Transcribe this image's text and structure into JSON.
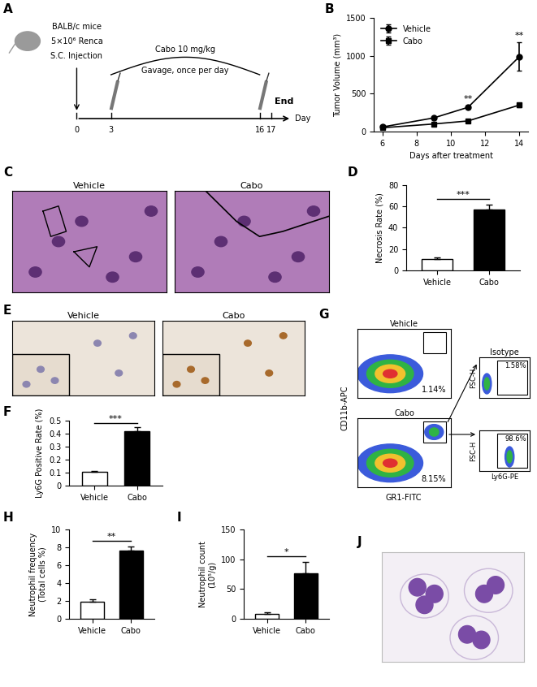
{
  "schematic": {
    "panel": "A",
    "lines": [
      "BALB/c mice",
      "5×10⁶ Renca",
      "S.C. Injection"
    ],
    "treatment": "Cabo 10 mg/kg",
    "route": "Gavage, once per day",
    "end_label": "End",
    "axis_label": "Day",
    "days": [
      0,
      3,
      16,
      17
    ]
  },
  "chart_data": [
    {
      "panel": "B",
      "type": "line",
      "x": [
        6,
        9,
        11,
        14
      ],
      "xlabel": "Days after treatment",
      "ylabel": "Tumor Volume (mm³)",
      "xlim": [
        5.5,
        14.5
      ],
      "ylim": [
        0,
        1500
      ],
      "xticks": [
        6,
        8,
        10,
        12,
        14
      ],
      "yticks": [
        0,
        500,
        1000,
        1500
      ],
      "legend": "upper left",
      "series": [
        {
          "name": "Vehicle",
          "color": "#000000",
          "marker": "circle",
          "line_style": "solid",
          "values": [
            60,
            180,
            320,
            990
          ],
          "errors": [
            8,
            15,
            20,
            190
          ]
        },
        {
          "name": "Cabo",
          "color": "#000000",
          "marker": "square",
          "line_style": "solid",
          "values": [
            50,
            100,
            140,
            350
          ],
          "errors": [
            5,
            10,
            12,
            25
          ]
        }
      ],
      "annotations": [
        {
          "x": 11,
          "text": "**"
        },
        {
          "x": 14,
          "text": "**"
        }
      ]
    },
    {
      "panel": "D",
      "type": "bar",
      "categories": [
        "Vehicle",
        "Cabo"
      ],
      "values": [
        11,
        57
      ],
      "errors": [
        1,
        5
      ],
      "colors": [
        "#ffffff",
        "#000000"
      ],
      "ylabel": "Necrosis Rate (%)",
      "ylim": [
        0,
        80
      ],
      "yticks": [
        0,
        20,
        40,
        60,
        80
      ],
      "significance": "***"
    },
    {
      "panel": "F",
      "type": "bar",
      "categories": [
        "Vehicle",
        "Cabo"
      ],
      "values": [
        0.105,
        0.42
      ],
      "errors": [
        0.01,
        0.03
      ],
      "colors": [
        "#ffffff",
        "#000000"
      ],
      "ylabel": "Ly6G Positive Rate (%)",
      "ylim": [
        0,
        0.5
      ],
      "yticks": [
        0,
        0.1,
        0.2,
        0.3,
        0.4,
        0.5
      ],
      "significance": "***"
    },
    {
      "panel": "H",
      "type": "bar",
      "categories": [
        "Vehicle",
        "Cabo"
      ],
      "values": [
        1.9,
        7.6
      ],
      "errors": [
        0.3,
        0.5
      ],
      "colors": [
        "#ffffff",
        "#000000"
      ],
      "ylabel": "Neutrophil frequency\n(Total cells %)",
      "ylim": [
        0,
        10
      ],
      "yticks": [
        0,
        2,
        4,
        6,
        8,
        10
      ],
      "significance": "**"
    },
    {
      "panel": "I",
      "type": "bar",
      "categories": [
        "Vehicle",
        "Cabo"
      ],
      "values": [
        8,
        76
      ],
      "errors": [
        3,
        20
      ],
      "colors": [
        "#ffffff",
        "#000000"
      ],
      "ylabel": "Neutrophil count\n(10⁵/g)",
      "ylim": [
        0,
        150
      ],
      "yticks": [
        0,
        50,
        100,
        150
      ],
      "significance": "*"
    }
  ],
  "micrographs": [
    {
      "panel": "C",
      "images": [
        "Vehicle",
        "Cabo"
      ]
    },
    {
      "panel": "E",
      "images": [
        "Vehicle",
        "Cabo"
      ]
    }
  ],
  "flow": {
    "panel": "G",
    "y_label": "CD11b-APC",
    "x_label": "GR1-FITC",
    "plots": [
      {
        "name": "Vehicle",
        "percent": "1.14%"
      },
      {
        "name": "Cabo",
        "percent": "8.15%"
      }
    ],
    "histograms": [
      {
        "name": "Isotype",
        "percent": "1.58%"
      },
      {
        "percent": "98.6%"
      }
    ],
    "hist_y_label": "FSC-H",
    "hist_x_label": "Ly6G-PE"
  },
  "image_panel": {
    "panel": "J"
  }
}
